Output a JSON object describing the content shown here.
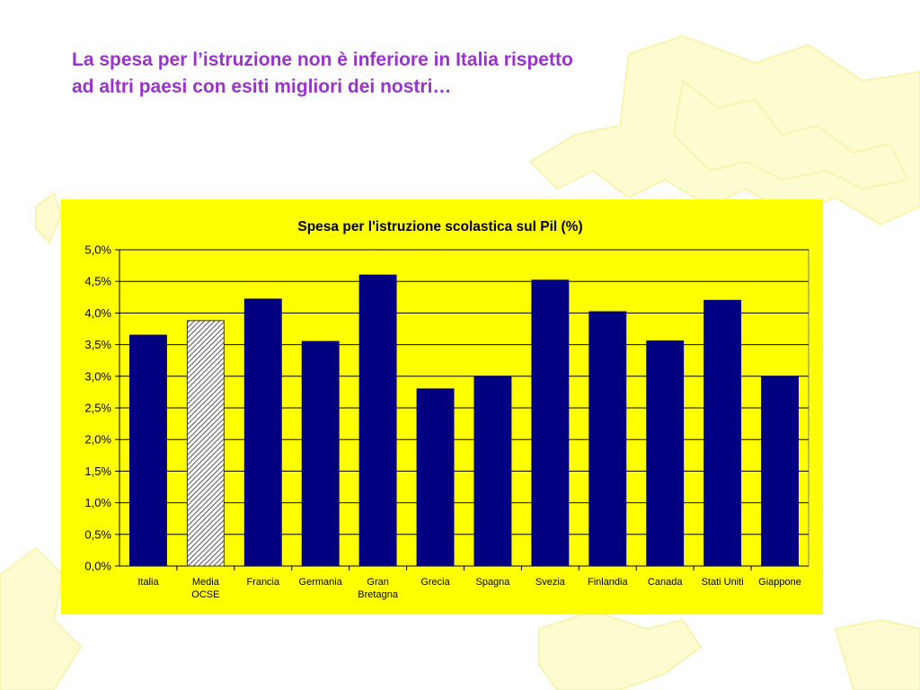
{
  "slide": {
    "title_lines": [
      "La spesa per l’istruzione non è inferiore in Italia rispetto",
      "ad altri paesi con esiti migliori dei nostri…"
    ]
  },
  "colors": {
    "title": "#9933cc",
    "panel": "#ffff00",
    "bar": "#000080",
    "highlight_bar": "hatched",
    "background_map": "#fdfbd0"
  },
  "chart_data": {
    "type": "bar",
    "title": "Spesa per l'istruzione scolastica sul Pil (%)",
    "xlabel": "",
    "ylabel": "",
    "ylim": [
      0,
      5
    ],
    "yticks": [
      0,
      0.5,
      1,
      1.5,
      2,
      2.5,
      3,
      3.5,
      4,
      4.5,
      5
    ],
    "ytick_labels": [
      "0,0%",
      "0,5%",
      "1,0%",
      "1,5%",
      "2,0%",
      "2,5%",
      "3,0%",
      "3,5%",
      "4,0%",
      "4,5%",
      "5,0%"
    ],
    "grid": true,
    "legend": "none",
    "categories": [
      [
        "Italia"
      ],
      [
        "Media",
        "OCSE"
      ],
      [
        "Francia"
      ],
      [
        "Germania"
      ],
      [
        "Gran",
        "Bretagna"
      ],
      [
        "Grecia"
      ],
      [
        "Spagna"
      ],
      [
        "Svezia"
      ],
      [
        "Finlandia"
      ],
      [
        "Canada"
      ],
      [
        "Stati Uniti"
      ],
      [
        "Giappone"
      ]
    ],
    "values": [
      3.65,
      3.88,
      4.22,
      3.55,
      4.6,
      2.8,
      3.0,
      4.52,
      4.02,
      3.56,
      4.2,
      3.0
    ],
    "highlighted": [
      1
    ]
  }
}
